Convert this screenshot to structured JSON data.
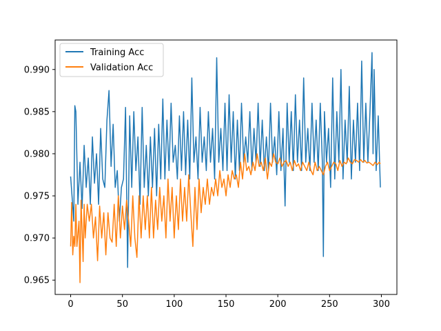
{
  "chart_data": {
    "type": "line",
    "title": "",
    "xlabel": "",
    "ylabel": "",
    "xlim": [
      -15,
      315
    ],
    "ylim": [
      0.9633,
      0.9935
    ],
    "x_ticks": [
      0,
      50,
      100,
      150,
      200,
      250,
      300
    ],
    "x_tick_labels": [
      "0",
      "50",
      "100",
      "150",
      "200",
      "250",
      "300"
    ],
    "y_ticks": [
      0.965,
      0.97,
      0.975,
      0.98,
      0.985,
      0.99
    ],
    "y_tick_labels": [
      "0.965",
      "0.970",
      "0.975",
      "0.980",
      "0.985",
      "0.990"
    ],
    "grid": false,
    "legend_position": "upper-left",
    "x": "0..299 (one point per epoch)",
    "series": [
      {
        "name": "Training Acc",
        "color": "#1f77b4",
        "anchors_x": [
          0,
          3,
          4,
          5,
          7,
          9,
          11,
          13,
          15,
          17,
          19,
          21,
          23,
          25,
          27,
          29,
          31,
          33,
          35,
          37,
          39,
          41,
          43,
          45,
          47,
          49,
          51,
          53,
          55,
          57,
          59,
          61,
          63,
          65,
          67,
          69,
          71,
          73,
          75,
          77,
          79,
          81,
          83,
          85,
          87,
          89,
          91,
          93,
          95,
          97,
          99,
          101,
          103,
          105,
          107,
          109,
          111,
          113,
          115,
          117,
          119,
          121,
          123,
          125,
          127,
          129,
          131,
          133,
          135,
          137,
          139,
          141,
          143,
          145,
          147,
          149,
          151,
          153,
          155,
          157,
          159,
          161,
          163,
          165,
          167,
          169,
          171,
          173,
          175,
          177,
          179,
          181,
          183,
          185,
          187,
          189,
          191,
          193,
          195,
          197,
          199,
          201,
          203,
          205,
          207,
          209,
          211,
          213,
          215,
          217,
          219,
          221,
          223,
          225,
          227,
          229,
          231,
          233,
          235,
          237,
          239,
          241,
          243,
          244,
          245,
          247,
          249,
          251,
          253,
          255,
          257,
          259,
          261,
          263,
          265,
          267,
          269,
          271,
          273,
          275,
          277,
          279,
          281,
          283,
          285,
          287,
          289,
          291,
          292,
          293,
          295,
          297,
          299
        ],
        "anchors_y": [
          0.9773,
          0.972,
          0.9857,
          0.985,
          0.974,
          0.979,
          0.9735,
          0.981,
          0.976,
          0.9795,
          0.974,
          0.982,
          0.9765,
          0.98,
          0.974,
          0.983,
          0.977,
          0.976,
          0.984,
          0.9875,
          0.9785,
          0.9835,
          0.976,
          0.978,
          0.972,
          0.976,
          0.977,
          0.9855,
          0.9665,
          0.9845,
          0.976,
          0.985,
          0.978,
          0.982,
          0.974,
          0.9855,
          0.976,
          0.981,
          0.975,
          0.982,
          0.976,
          0.983,
          0.975,
          0.9835,
          0.977,
          0.9865,
          0.977,
          0.984,
          0.978,
          0.986,
          0.979,
          0.981,
          0.977,
          0.9845,
          0.978,
          0.985,
          0.9775,
          0.984,
          0.977,
          0.989,
          0.979,
          0.982,
          0.977,
          0.9855,
          0.979,
          0.982,
          0.978,
          0.985,
          0.979,
          0.983,
          0.977,
          0.9914,
          0.979,
          0.983,
          0.978,
          0.986,
          0.978,
          0.987,
          0.979,
          0.985,
          0.977,
          0.984,
          0.978,
          0.986,
          0.979,
          0.982,
          0.979,
          0.985,
          0.978,
          0.983,
          0.979,
          0.986,
          0.9785,
          0.984,
          0.978,
          0.982,
          0.978,
          0.986,
          0.979,
          0.982,
          0.9775,
          0.985,
          0.978,
          0.983,
          0.9738,
          0.986,
          0.979,
          0.985,
          0.978,
          0.987,
          0.979,
          0.984,
          0.978,
          0.989,
          0.979,
          0.983,
          0.978,
          0.986,
          0.979,
          0.984,
          0.978,
          0.986,
          0.979,
          0.9678,
          0.985,
          0.979,
          0.983,
          0.976,
          0.989,
          0.977,
          0.985,
          0.979,
          0.99,
          0.977,
          0.984,
          0.979,
          0.988,
          0.977,
          0.984,
          0.979,
          0.986,
          0.978,
          0.991,
          0.979,
          0.986,
          0.979,
          0.985,
          0.992,
          0.98,
          0.99,
          0.978,
          0.9845,
          0.976
        ]
      },
      {
        "name": "Validation Acc",
        "color": "#ff7f0e",
        "anchors_x": [
          0,
          1,
          2,
          3,
          4,
          5,
          6,
          7,
          8,
          9,
          10,
          11,
          12,
          13,
          14,
          16,
          18,
          20,
          22,
          24,
          26,
          28,
          30,
          32,
          34,
          36,
          38,
          40,
          42,
          44,
          46,
          48,
          50,
          52,
          54,
          56,
          58,
          60,
          62,
          64,
          66,
          68,
          70,
          72,
          74,
          76,
          78,
          80,
          82,
          84,
          86,
          88,
          90,
          92,
          94,
          96,
          98,
          100,
          102,
          104,
          106,
          108,
          110,
          112,
          114,
          116,
          118,
          120,
          122,
          124,
          126,
          128,
          130,
          132,
          134,
          136,
          138,
          140,
          142,
          144,
          146,
          148,
          150,
          152,
          154,
          156,
          158,
          160,
          162,
          164,
          166,
          168,
          170,
          172,
          174,
          176,
          178,
          180,
          182,
          184,
          186,
          188,
          190,
          192,
          194,
          196,
          198,
          200,
          202,
          204,
          206,
          208,
          210,
          212,
          214,
          216,
          218,
          220,
          222,
          224,
          226,
          228,
          230,
          232,
          234,
          236,
          238,
          240,
          242,
          244,
          246,
          248,
          250,
          252,
          254,
          256,
          258,
          260,
          262,
          264,
          266,
          268,
          270,
          272,
          274,
          276,
          278,
          280,
          282,
          284,
          286,
          288,
          290,
          292,
          294,
          296,
          298,
          299
        ],
        "anchors_y": [
          0.969,
          0.9742,
          0.968,
          0.9702,
          0.969,
          0.974,
          0.969,
          0.9705,
          0.972,
          0.9647,
          0.9745,
          0.971,
          0.9672,
          0.974,
          0.97,
          0.974,
          0.972,
          0.974,
          0.97,
          0.9725,
          0.9673,
          0.9738,
          0.97,
          0.973,
          0.968,
          0.973,
          0.97,
          0.9695,
          0.974,
          0.969,
          0.975,
          0.97,
          0.9738,
          0.971,
          0.9745,
          0.972,
          0.969,
          0.975,
          0.97,
          0.9677,
          0.975,
          0.97,
          0.975,
          0.971,
          0.975,
          0.97,
          0.976,
          0.97,
          0.9745,
          0.971,
          0.976,
          0.972,
          0.975,
          0.97,
          0.977,
          0.972,
          0.976,
          0.97,
          0.975,
          0.971,
          0.977,
          0.972,
          0.976,
          0.972,
          0.9775,
          0.973,
          0.969,
          0.976,
          0.971,
          0.977,
          0.973,
          0.976,
          0.974,
          0.977,
          0.974,
          0.976,
          0.975,
          0.977,
          0.975,
          0.978,
          0.976,
          0.977,
          0.975,
          0.9775,
          0.976,
          0.978,
          0.977,
          0.9775,
          0.976,
          0.979,
          0.977,
          0.98,
          0.978,
          0.9785,
          0.9775,
          0.979,
          0.978,
          0.98,
          0.9785,
          0.979,
          0.978,
          0.9795,
          0.977,
          0.979,
          0.9785,
          0.98,
          0.979,
          0.9788,
          0.9795,
          0.9785,
          0.979,
          0.9792,
          0.9785,
          0.979,
          0.978,
          0.9792,
          0.9785,
          0.9788,
          0.978,
          0.979,
          0.9785,
          0.978,
          0.979,
          0.978,
          0.9775,
          0.979,
          0.978,
          0.9785,
          0.978,
          0.9775,
          0.9785,
          0.979,
          0.978,
          0.9785,
          0.979,
          0.9788,
          0.978,
          0.9792,
          0.9785,
          0.979,
          0.9788,
          0.9795,
          0.979,
          0.9788,
          0.9793,
          0.9792,
          0.979,
          0.9793,
          0.979,
          0.9792,
          0.9789,
          0.979,
          0.9788,
          0.9786,
          0.979,
          0.9787,
          0.979,
          0.9788
        ]
      }
    ]
  },
  "legend": {
    "items": [
      {
        "label": "Training Acc",
        "color": "#1f77b4"
      },
      {
        "label": "Validation Acc",
        "color": "#ff7f0e"
      }
    ]
  }
}
